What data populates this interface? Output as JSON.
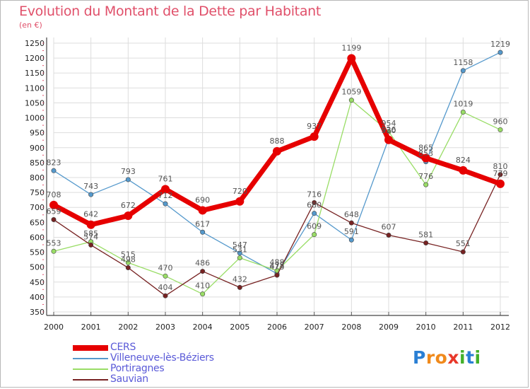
{
  "title": "Evolution du Montant de la Dette par Habitant",
  "unit_label": "(en €)",
  "logo": {
    "letters": [
      "P",
      "r",
      "o",
      "x",
      "i",
      "t",
      "i"
    ],
    "colors": [
      "#2a7fd4",
      "#f08a1c",
      "#f08a1c",
      "#e8382a",
      "#43b02a",
      "#2a7fd4",
      "#43b02a"
    ]
  },
  "chart_data": {
    "type": "line",
    "x": [
      "2000",
      "2001",
      "2002",
      "2003",
      "2004",
      "2005",
      "2006",
      "2007",
      "2008",
      "2009",
      "2010",
      "2011",
      "2012"
    ],
    "ylim": [
      350,
      1250
    ],
    "yticks": [
      350,
      400,
      450,
      500,
      550,
      600,
      650,
      700,
      750,
      800,
      850,
      900,
      950,
      1000,
      1050,
      1100,
      1150,
      1200,
      1250
    ],
    "grid": true,
    "legend_position": "bottom-left",
    "series": [
      {
        "name": "CERS",
        "color": "#e60000",
        "values": [
          708,
          642,
          672,
          761,
          690,
          720,
          888,
          937,
          1199,
          926,
          865,
          824,
          779
        ],
        "labels": [
          "708",
          "642",
          "672",
          "761",
          "690",
          "720",
          "888",
          "937",
          "1199",
          "926",
          "865",
          "824",
          "779"
        ]
      },
      {
        "name": "Villeneuve-lès-Béziers",
        "color": "#5599cc",
        "values": [
          823,
          743,
          793,
          712,
          617,
          547,
          478,
          680,
          591,
          930,
          853,
          1158,
          1219
        ],
        "labels": [
          "823",
          "743",
          "793",
          "712",
          "617",
          "547",
          "478",
          "680",
          "591",
          "930",
          "853",
          "1158",
          "1219"
        ]
      },
      {
        "name": "Portiragnes",
        "color": "#99dd66",
        "values": [
          553,
          585,
          515,
          470,
          410,
          531,
          488,
          609,
          1059,
          954,
          776,
          1019,
          960
        ],
        "labels": [
          "553",
          "585",
          "515",
          "470",
          "410",
          "531",
          "488",
          "609",
          "1059",
          "954",
          "776",
          "1019",
          "960"
        ]
      },
      {
        "name": "Sauvian",
        "color": "#772222",
        "values": [
          659,
          574,
          498,
          404,
          486,
          432,
          473,
          716,
          648,
          607,
          581,
          551,
          810
        ],
        "labels": [
          "659",
          "574",
          "498",
          "404",
          "486",
          "432",
          "473",
          "716",
          "648",
          "607",
          "581",
          "551",
          "810"
        ]
      }
    ]
  }
}
